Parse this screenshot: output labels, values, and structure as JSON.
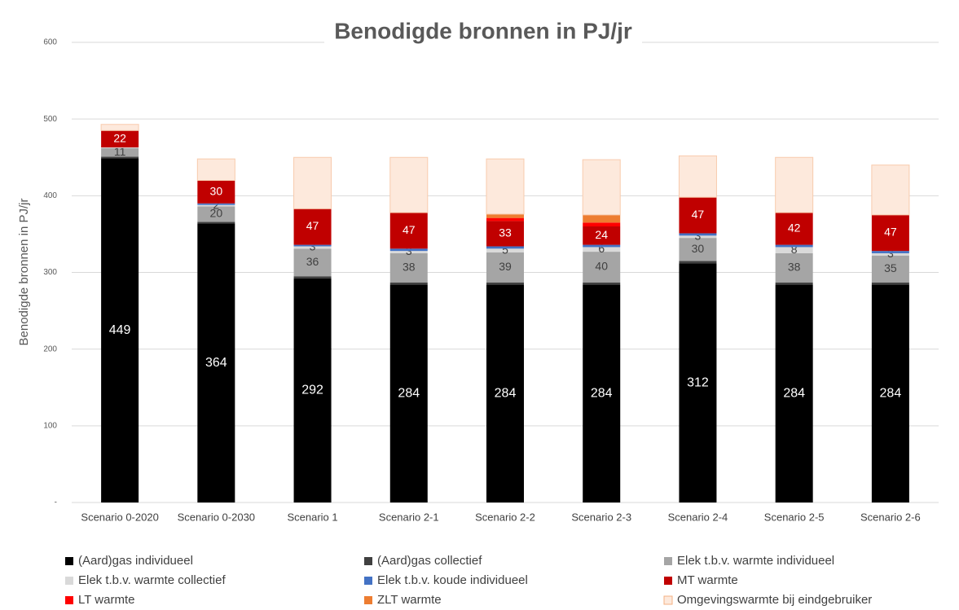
{
  "chart_data": {
    "type": "stacked_bar",
    "title": "Benodigde bronnen in PJ/jr",
    "y_label": "Benodigde bronnen in PJ/jr",
    "categories": [
      "Scenario 0-2020",
      "Scenario 0-2030",
      "Scenario 1",
      "Scenario 2-1",
      "Scenario 2-2",
      "Scenario 2-3",
      "Scenario 2-4",
      "Scenario 2-5",
      "Scenario 2-6"
    ],
    "ylim": [
      0,
      600
    ],
    "yticks": [
      {
        "value": 0,
        "label": "-"
      },
      100,
      200,
      300,
      400,
      500,
      600
    ],
    "grid": true,
    "series": [
      {
        "name": "(Aard)gas individueel",
        "color": "#000000",
        "values": [
          449,
          364,
          292,
          284,
          284,
          284,
          312,
          284,
          284
        ],
        "value_labels": [
          "449",
          "364",
          "292",
          "284",
          "284",
          "284",
          "312",
          "284",
          "284"
        ]
      },
      {
        "name": "(Aard)gas collectief",
        "color": "#404040",
        "values": [
          2,
          2,
          3,
          3,
          3,
          3,
          3,
          3,
          3
        ]
      },
      {
        "name": "Elek t.b.v. warmte individueel",
        "color": "#a5a5a5",
        "values": [
          11,
          20,
          36,
          38,
          39,
          40,
          30,
          38,
          35
        ],
        "value_labels": [
          "11",
          "20",
          "36",
          "38",
          "39",
          "40",
          "30",
          "38",
          "35"
        ]
      },
      {
        "name": "Elek t.b.v. warmte collectief",
        "color": "#d9d9d9",
        "values": [
          1,
          2,
          3,
          3,
          5,
          6,
          3,
          8,
          3
        ],
        "value_labels": [
          null,
          "2",
          "3",
          "3",
          "5",
          "6",
          "3",
          "8",
          "3"
        ]
      },
      {
        "name": "Elek t.b.v. koude individueel",
        "color": "#4472c4",
        "values": [
          0,
          2,
          2,
          3,
          3,
          3,
          3,
          3,
          3
        ]
      },
      {
        "name": "MT warmte",
        "color": "#c00000",
        "values": [
          22,
          30,
          47,
          47,
          33,
          24,
          47,
          42,
          47
        ],
        "value_labels": [
          "22",
          "30",
          "47",
          "47",
          "33",
          "24",
          "47",
          "42",
          "47"
        ]
      },
      {
        "name": "LT warmte",
        "color": "#ff0000",
        "values": [
          0,
          0,
          0,
          0,
          4,
          5,
          0,
          0,
          0
        ]
      },
      {
        "name": "ZLT warmte",
        "color": "#ed7d31",
        "values": [
          0,
          0,
          0,
          0,
          5,
          10,
          0,
          0,
          0
        ]
      },
      {
        "name": "Omgevingswarmte bij eindgebruiker",
        "color": "#fde9dc",
        "values": [
          8,
          28,
          67,
          72,
          72,
          72,
          54,
          72,
          65
        ]
      }
    ]
  }
}
